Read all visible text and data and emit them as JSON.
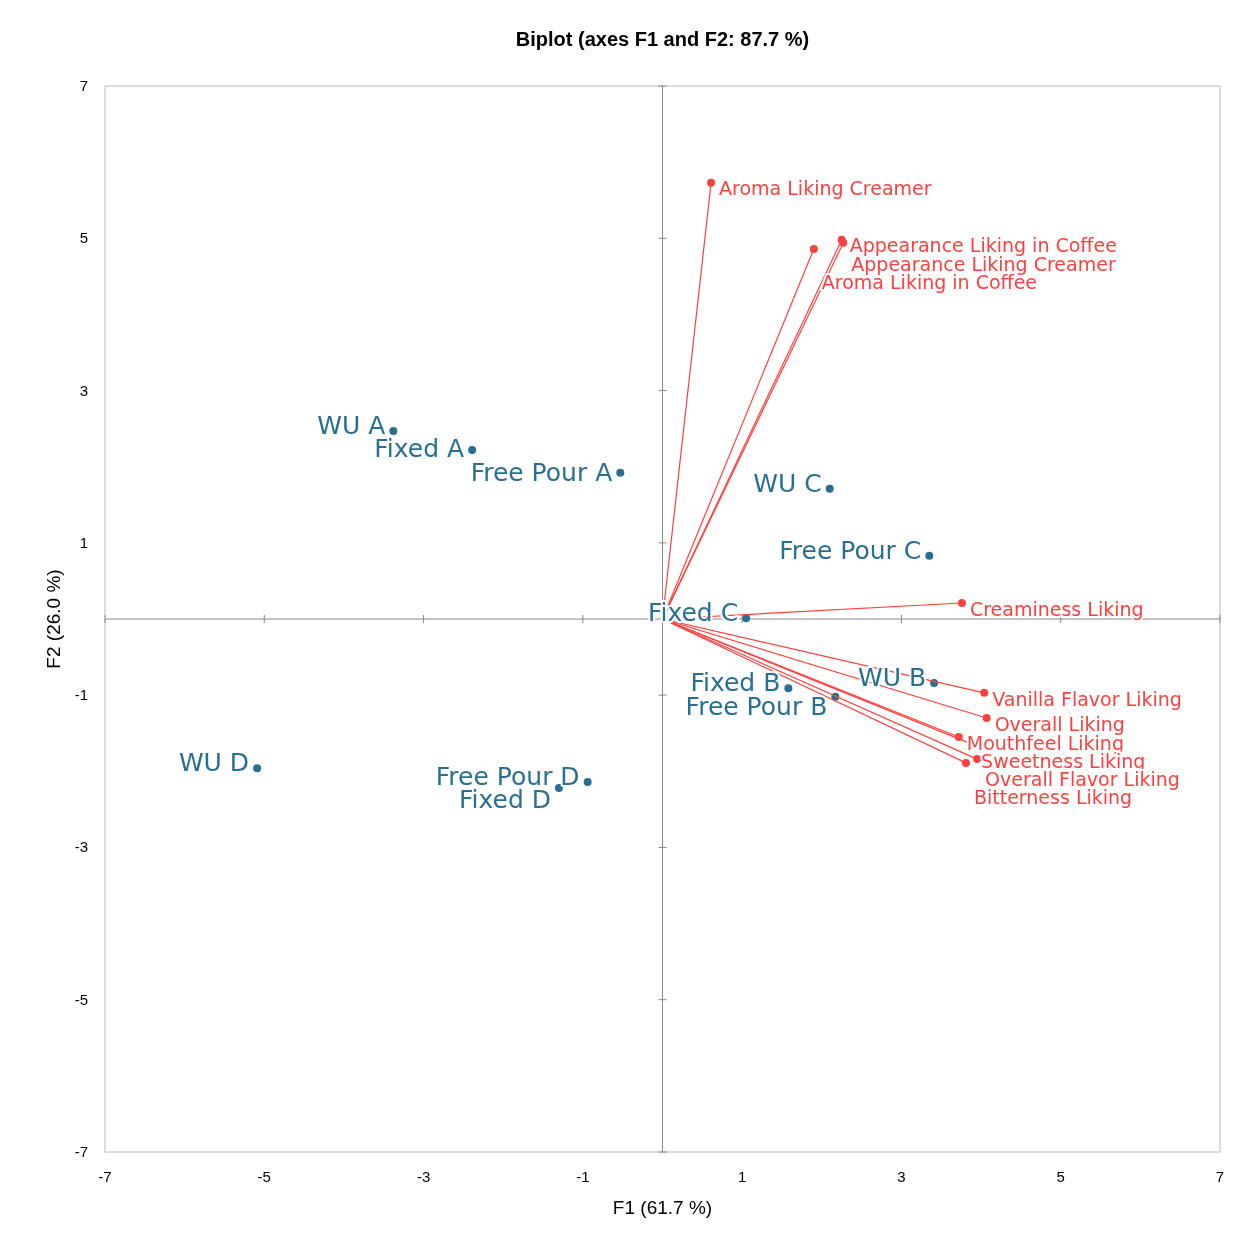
{
  "chart_data": {
    "type": "scatter",
    "title": "Biplot (axes F1 and F2: 87.7 %)",
    "xlabel": "F1 (61.7 %)",
    "ylabel": "F2 (26.0 %)",
    "xlim": [
      -7,
      7
    ],
    "ylim": [
      -7,
      7
    ],
    "xticks": [
      -7,
      -5,
      -3,
      -1,
      1,
      3,
      5,
      7
    ],
    "yticks": [
      -7,
      -5,
      -3,
      -1,
      1,
      3,
      5,
      7
    ],
    "grid": false,
    "marker": "circle",
    "series": [
      {
        "color": "#2a6f8f",
        "x": [
          -3.38,
          -2.39,
          -0.53,
          2.1,
          3.35,
          1.05,
          3.41,
          1.58,
          2.17,
          -5.09,
          -0.94,
          -1.3
        ],
        "values": [
          2.47,
          2.22,
          1.92,
          1.71,
          0.83,
          0.01,
          -0.84,
          -0.91,
          -1.02,
          -1.96,
          -2.14,
          -2.22
        ]
      },
      {
        "type": "line",
        "color": "#ff4040",
        "x": [
          0,
          0.61
        ],
        "values": [
          0,
          5.73
        ]
      },
      {
        "type": "line",
        "color": "#ff4040",
        "x": [
          0,
          1.9
        ],
        "values": [
          0,
          4.86
        ]
      },
      {
        "type": "line",
        "color": "#ff4040",
        "x": [
          0,
          2.25
        ],
        "values": [
          0,
          4.98
        ]
      },
      {
        "type": "line",
        "color": "#ff4040",
        "x": [
          0,
          2.27
        ],
        "values": [
          0,
          4.94
        ]
      },
      {
        "type": "line",
        "color": "#ff4040",
        "x": [
          0,
          3.76
        ],
        "values": [
          0,
          0.21
        ]
      },
      {
        "type": "line",
        "color": "#ff4040",
        "x": [
          0,
          4.04
        ],
        "values": [
          0,
          -0.97
        ]
      },
      {
        "type": "line",
        "color": "#ff4040",
        "x": [
          0,
          4.07
        ],
        "values": [
          0,
          -1.3
        ]
      },
      {
        "type": "line",
        "color": "#ff4040",
        "x": [
          0,
          3.72
        ],
        "values": [
          0,
          -1.55
        ]
      },
      {
        "type": "line",
        "color": "#ff4040",
        "x": [
          0,
          3.9
        ],
        "values": [
          0,
          -1.65
        ]
      },
      {
        "type": "line",
        "color": "#ff4040",
        "x": [
          0,
          3.95
        ],
        "values": [
          0,
          -1.84
        ]
      },
      {
        "type": "line",
        "color": "#ff4040",
        "x": [
          0,
          3.81
        ],
        "values": [
          0,
          -1.89
        ]
      }
    ],
    "annotations": [
      {
        "text": "WU A",
        "x": -3.38,
        "y": 2.47
      },
      {
        "text": "Fixed A",
        "x": -2.39,
        "y": 2.22
      },
      {
        "text": "Free Pour A",
        "x": -0.53,
        "y": 1.92
      },
      {
        "text": "WU C",
        "x": 2.1,
        "y": 1.71
      },
      {
        "text": "Free Pour C",
        "x": 3.35,
        "y": 0.83
      },
      {
        "text": "Fixed C",
        "x": 1.05,
        "y": 0.01
      },
      {
        "text": "WU B",
        "x": 3.41,
        "y": -0.84
      },
      {
        "text": "Fixed B",
        "x": 1.58,
        "y": -0.91
      },
      {
        "text": "Free Pour B",
        "x": 2.17,
        "y": -1.02
      },
      {
        "text": "WU D",
        "x": -5.09,
        "y": -1.96
      },
      {
        "text": "Free Pour D",
        "x": -0.94,
        "y": -2.14
      },
      {
        "text": "Fixed D",
        "x": -1.3,
        "y": -2.22
      },
      {
        "text": "Aroma Liking Creamer",
        "x": 0.61,
        "y": 5.73
      },
      {
        "text": "Aroma Liking in Coffee",
        "x": 1.9,
        "y": 4.86
      },
      {
        "text": "Appearance Liking in Coffee",
        "x": 2.25,
        "y": 4.98
      },
      {
        "text": "Appearance Liking Creamer",
        "x": 2.27,
        "y": 4.94
      },
      {
        "text": "Creaminess Liking",
        "x": 3.76,
        "y": 0.21
      },
      {
        "text": "Vanilla Flavor Liking",
        "x": 4.04,
        "y": -0.97
      },
      {
        "text": "Overall Liking",
        "x": 4.07,
        "y": -1.3
      },
      {
        "text": "Mouthfeel Liking",
        "x": 3.72,
        "y": -1.55
      },
      {
        "text": "Sweetness Liking",
        "x": 3.9,
        "y": -1.65
      },
      {
        "text": "Overall Flavor Liking",
        "x": 3.95,
        "y": -1.84
      },
      {
        "text": "Bitterness Liking",
        "x": 3.81,
        "y": -1.89
      }
    ]
  }
}
